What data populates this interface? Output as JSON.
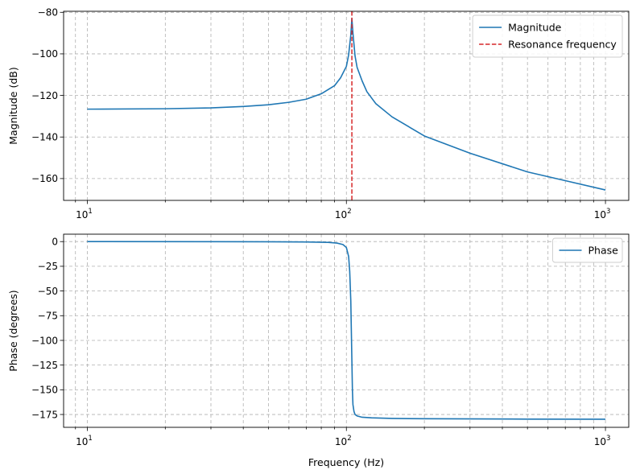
{
  "chart_data": [
    {
      "type": "line",
      "title": "",
      "xlabel": "",
      "ylabel": "Magnitude (dB)",
      "xscale": "log",
      "xlim": [
        8.1,
        1230
      ],
      "ylim": [
        -170.5,
        -79.5
      ],
      "grid": true,
      "legend_position": "top-right",
      "x_ticks": [
        10,
        100,
        1000
      ],
      "x_tick_labels": [
        [
          "10",
          "1"
        ],
        [
          "10",
          "2"
        ],
        [
          "10",
          "3"
        ]
      ],
      "y_ticks": [
        -80,
        -100,
        -120,
        -140,
        -160
      ],
      "y_tick_labels": [
        "−80",
        "−100",
        "−120",
        "−140",
        "−160"
      ],
      "series": [
        {
          "name": "Magnitude",
          "color": "#1f77b4",
          "style": "solid",
          "x": [
            10,
            20,
            30,
            40,
            50,
            60,
            70,
            80,
            90,
            95,
            100,
            102,
            104,
            105,
            106,
            108,
            110,
            115,
            120,
            130,
            150,
            200,
            300,
            500,
            700,
            1000
          ],
          "y": [
            -126.6,
            -126.4,
            -126.0,
            -125.3,
            -124.5,
            -123.3,
            -121.8,
            -119.2,
            -115.3,
            -111.5,
            -106.0,
            -100.5,
            -91.0,
            -83.0,
            -90.0,
            -101.0,
            -106.5,
            -113.0,
            -118.2,
            -124.0,
            -130.3,
            -139.5,
            -147.8,
            -156.8,
            -161.0,
            -165.5
          ]
        },
        {
          "name": "Resonance frequency",
          "color": "#d62728",
          "style": "dashed",
          "x_value": 105
        }
      ]
    },
    {
      "type": "line",
      "title": "",
      "xlabel": "Frequency (Hz)",
      "ylabel": "Phase (degrees)",
      "xscale": "log",
      "xlim": [
        8.1,
        1230
      ],
      "ylim": [
        -188,
        7.5
      ],
      "grid": true,
      "legend_position": "top-right",
      "x_ticks": [
        10,
        100,
        1000
      ],
      "x_tick_labels": [
        [
          "10",
          "1"
        ],
        [
          "10",
          "2"
        ],
        [
          "10",
          "3"
        ]
      ],
      "y_ticks": [
        0,
        -25,
        -50,
        -75,
        -100,
        -125,
        -150,
        -175
      ],
      "y_tick_labels": [
        "0",
        "−25",
        "−50",
        "−75",
        "−100",
        "−125",
        "−150",
        "−175"
      ],
      "series": [
        {
          "name": "Phase",
          "color": "#1f77b4",
          "style": "solid",
          "x": [
            10,
            30,
            50,
            70,
            85,
            92,
            97,
            100,
            102,
            103,
            104,
            104.5,
            105,
            105.5,
            106,
            107,
            108,
            110,
            115,
            125,
            150,
            200,
            500,
            1000
          ],
          "y": [
            0,
            -0.1,
            -0.2,
            -0.4,
            -0.8,
            -1.5,
            -3.0,
            -6.0,
            -15.0,
            -30.0,
            -60.0,
            -90.0,
            -120.0,
            -150.0,
            -165.0,
            -172.0,
            -175.0,
            -176.5,
            -177.8,
            -178.4,
            -179.0,
            -179.3,
            -179.7,
            -179.8
          ]
        }
      ]
    }
  ]
}
